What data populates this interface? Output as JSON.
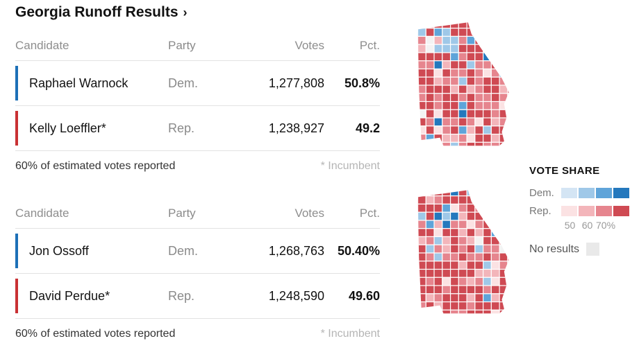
{
  "page": {
    "title": "Georgia Runoff Results",
    "chevron": "›"
  },
  "tables": [
    {
      "headers": {
        "candidate": "Candidate",
        "party": "Party",
        "votes": "Votes",
        "pct": "Pct."
      },
      "rows": [
        {
          "candidate": "Raphael Warnock",
          "party": "Dem.",
          "votes": "1,277,808",
          "pct": "50.8%",
          "color": "#1d70b7"
        },
        {
          "candidate": "Kelly Loeffler*",
          "party": "Rep.",
          "votes": "1,238,927",
          "pct": "49.2",
          "color": "#c93134"
        }
      ],
      "footer": {
        "reported": "60% of estimated votes reported",
        "incumbent_note": "* Incumbent"
      }
    },
    {
      "headers": {
        "candidate": "Candidate",
        "party": "Party",
        "votes": "Votes",
        "pct": "Pct."
      },
      "rows": [
        {
          "candidate": "Jon Ossoff",
          "party": "Dem.",
          "votes": "1,268,763",
          "pct": "50.40%",
          "color": "#1d70b7"
        },
        {
          "candidate": "David Perdue*",
          "party": "Rep.",
          "votes": "1,248,590",
          "pct": "49.60",
          "color": "#c93134"
        }
      ],
      "footer": {
        "reported": "60% of estimated votes reported",
        "incumbent_note": "* Incumbent"
      }
    }
  ],
  "legend": {
    "title": "VOTE SHARE",
    "dem_label": "Dem.",
    "rep_label": "Rep.",
    "dem_colors": [
      "#d4e5f4",
      "#9fc8e8",
      "#5fa4d9",
      "#2478bd"
    ],
    "rep_colors": [
      "#fbe2e3",
      "#f3b5ba",
      "#e6858e",
      "#cf4a53"
    ],
    "scale_labels": [
      "50",
      "60",
      "70%"
    ],
    "no_results_label": "No results",
    "no_results_color": "#e9e9e9"
  },
  "chart_data": [
    {
      "type": "table",
      "title": "Georgia Runoff Results — Warnock vs. Loeffler",
      "columns": [
        "Candidate",
        "Party",
        "Votes",
        "Pct."
      ],
      "rows": [
        [
          "Raphael Warnock",
          "Dem.",
          1277808,
          "50.8%"
        ],
        [
          "Kelly Loeffler*",
          "Rep.",
          1238927,
          "49.2"
        ]
      ],
      "note": "60% of estimated votes reported; * Incumbent"
    },
    {
      "type": "table",
      "title": "Georgia Runoff Results — Ossoff vs. Perdue",
      "columns": [
        "Candidate",
        "Party",
        "Votes",
        "Pct."
      ],
      "rows": [
        [
          "Jon Ossoff",
          "Dem.",
          1268763,
          "50.40%"
        ],
        [
          "David Perdue*",
          "Rep.",
          1248590,
          "49.60"
        ]
      ],
      "note": "60% of estimated votes reported; * Incumbent"
    },
    {
      "type": "heatmap",
      "title": "Georgia county vote-share choropleth maps (one per race)",
      "description": "Two maps of Georgia counties shaded by winner vote share: mostly red (Republican) counties with blue (Democratic) clusters around metro Atlanta and scattered counties in middle/east/southwest Georgia.",
      "legend": {
        "dem_ramp": [
          "#d4e5f4",
          "#9fc8e8",
          "#5fa4d9",
          "#2478bd"
        ],
        "rep_ramp": [
          "#fbe2e3",
          "#f3b5ba",
          "#e6858e",
          "#cf4a53"
        ],
        "breaks": [
          "50",
          "60",
          "70%"
        ],
        "no_results": "#e9e9e9"
      }
    }
  ]
}
